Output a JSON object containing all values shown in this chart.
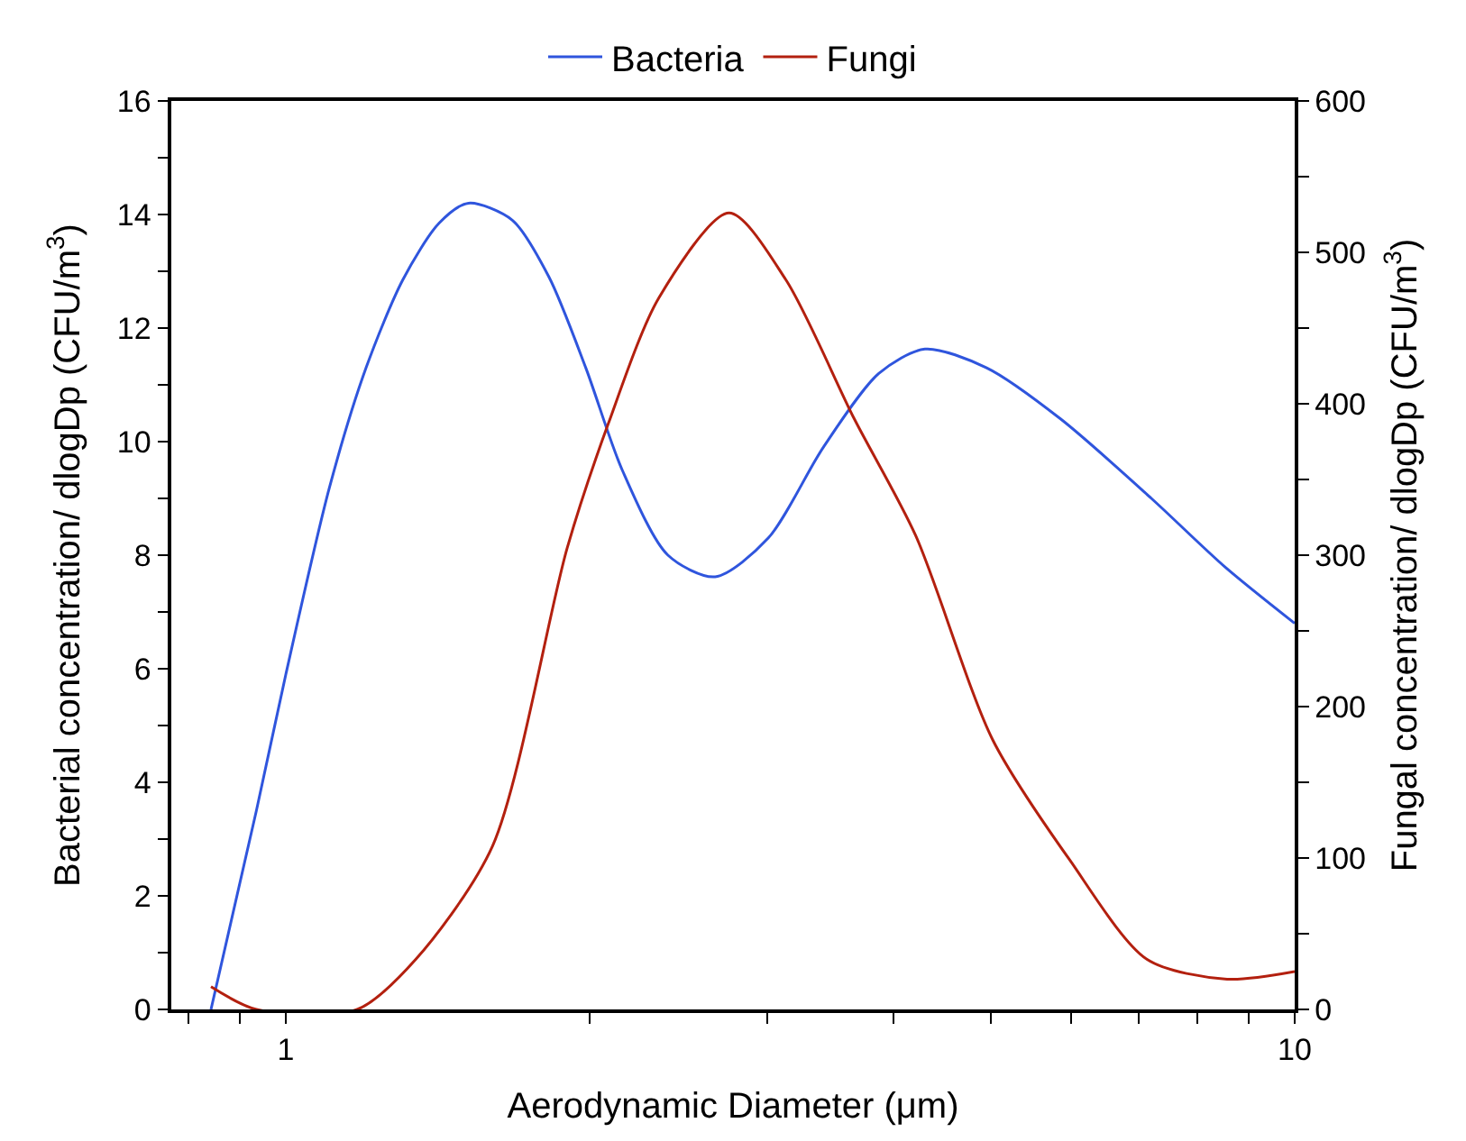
{
  "chart_data": {
    "type": "line",
    "xlabel": "Aerodynamic Diameter (μm)",
    "ylabel": "Bacterial concentration/ dlogDp (CFU/m$^{3}$)",
    "y2label": "Fungal concentration/ dlogDp (CFU/m$^{3}$)",
    "log": "x",
    "legend": "top",
    "marker": "none",
    "line_style": "solid",
    "xlim": [
      0.77,
      10
    ],
    "xticks": [
      {
        "value": 0.8,
        "label": null
      },
      {
        "value": 0.9,
        "label": null
      },
      1,
      {
        "value": 2,
        "label": null
      },
      {
        "value": 3,
        "label": null
      },
      {
        "value": 4,
        "label": null
      },
      {
        "value": 5,
        "label": null
      },
      {
        "value": 6,
        "label": null
      },
      {
        "value": 7,
        "label": null
      },
      {
        "value": 8,
        "label": null
      },
      {
        "value": 9,
        "label": null
      },
      10
    ],
    "ylim": [
      0,
      16
    ],
    "yticks": [
      0,
      {
        "value": 1,
        "label": null
      },
      2,
      {
        "value": 3,
        "label": null
      },
      4,
      {
        "value": 5,
        "label": null
      },
      6,
      {
        "value": 7,
        "label": null
      },
      8,
      {
        "value": 9,
        "label": null
      },
      10,
      {
        "value": 11,
        "label": null
      },
      12,
      {
        "value": 13,
        "label": null
      },
      14,
      {
        "value": 15,
        "label": null
      },
      16
    ],
    "y2lim": [
      0,
      600
    ],
    "y2ticks": [
      0,
      {
        "value": 50,
        "label": null
      },
      100,
      {
        "value": 150,
        "label": null
      },
      200,
      {
        "value": 250,
        "label": null
      },
      300,
      {
        "value": 350,
        "label": null
      },
      400,
      {
        "value": 450,
        "label": null
      },
      500,
      {
        "value": 550,
        "label": null
      },
      600
    ],
    "series": [
      {
        "name": "Bacteria",
        "color": "#2f55dd",
        "x": [
          0.843,
          0.935,
          1.0,
          1.105,
          1.201,
          1.306,
          1.419,
          1.517,
          1.677,
          1.823,
          1.983,
          2.155,
          2.392,
          2.664,
          3.007,
          3.41,
          3.87,
          4.3,
          4.95,
          5.86,
          7.21,
          8.52,
          10
        ],
        "values": [
          0,
          3.5,
          5.9,
          9.2,
          11.3,
          12.85,
          13.85,
          14.2,
          13.9,
          12.9,
          11.3,
          9.5,
          8.0,
          7.62,
          8.3,
          9.9,
          11.2,
          11.63,
          11.3,
          10.4,
          9.0,
          7.8,
          6.8
        ]
      },
      {
        "name": "Fungi",
        "color": "#b3200f",
        "axis": "y2",
        "x": [
          0.843,
          0.935,
          1.177,
          1.345,
          1.603,
          1.901,
          2.088,
          2.343,
          2.75,
          3.13,
          3.66,
          4.21,
          5.02,
          5.98,
          7.14,
          8.57,
          10
        ],
        "values": [
          15,
          0,
          0,
          33,
          108,
          305,
          387,
          470,
          526,
          482,
          390,
          313,
          178,
          99,
          33,
          20,
          25
        ]
      }
    ]
  }
}
